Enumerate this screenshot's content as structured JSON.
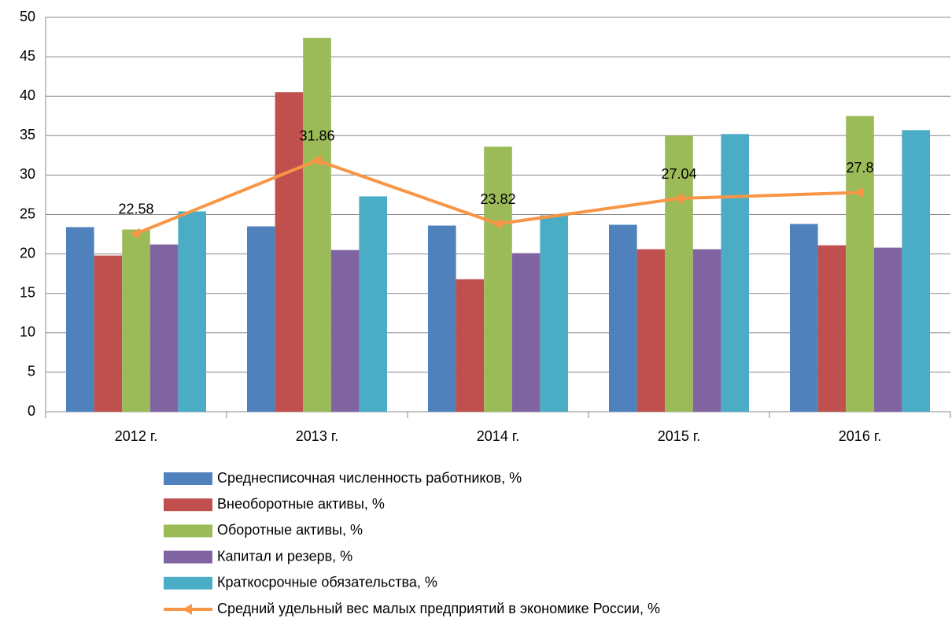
{
  "chart_data": {
    "type": "bar",
    "categories": [
      "2012 г.",
      "2013 г.",
      "2014 г.",
      "2015 г.",
      "2016 г."
    ],
    "series": [
      {
        "name": "Среднесписочная численность работников, %",
        "color": "#4f81bd",
        "values": [
          23.4,
          23.5,
          23.6,
          23.7,
          23.8
        ]
      },
      {
        "name": "Внеоборотные активы, %",
        "color": "#c0504d",
        "values": [
          19.8,
          40.5,
          16.8,
          20.6,
          21.1
        ]
      },
      {
        "name": "Оборотные активы, %",
        "color": "#9bbb59",
        "values": [
          23.1,
          47.4,
          33.6,
          35.0,
          37.5
        ]
      },
      {
        "name": "Капитал и резерв, %",
        "color": "#8064a2",
        "values": [
          21.2,
          20.5,
          20.1,
          20.6,
          20.8
        ]
      },
      {
        "name": "Краткосрочные обязательства, %",
        "color": "#4bacc6",
        "values": [
          25.4,
          27.3,
          24.9,
          35.2,
          35.7
        ]
      },
      {
        "name": "Средний удельный вес малых предприятий в экономике России, %",
        "color": "#f79646",
        "type": "line",
        "values": [
          22.58,
          31.86,
          23.82,
          27.04,
          27.8
        ]
      }
    ],
    "ylim": [
      0,
      50
    ],
    "yticks": [
      0,
      5,
      10,
      15,
      20,
      25,
      30,
      35,
      40,
      45,
      50
    ],
    "grid": true,
    "legend": "bottom"
  }
}
